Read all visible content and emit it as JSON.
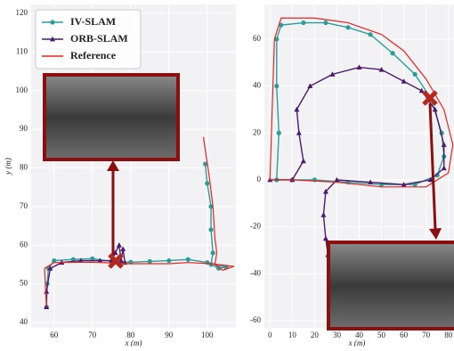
{
  "chart_data": [
    {
      "type": "line",
      "xlabel": "x (m)",
      "ylabel": "y (m)",
      "xlim": [
        54,
        107.5
      ],
      "ylim": [
        38.6,
        122.3
      ],
      "xticks": [
        60,
        70,
        80,
        90,
        100
      ],
      "yticks": [
        40,
        50,
        60,
        70,
        80,
        90,
        100,
        110,
        120
      ],
      "grid": true,
      "legend": "upper left",
      "series": [
        {
          "name": "IV-SLAM",
          "color": "#2a9d9a",
          "marker": "circle",
          "x": [
            99.5,
            100,
            101,
            101,
            101.5,
            101,
            103,
            105,
            100,
            95,
            90,
            85,
            80,
            75,
            70,
            65,
            60,
            58.5,
            58.2,
            58
          ],
          "values": [
            81,
            76,
            70,
            64,
            58,
            55,
            54,
            54.3,
            55.5,
            56.3,
            56,
            55.8,
            55.6,
            55.8,
            56.5,
            56.3,
            56,
            54,
            50,
            44
          ]
        },
        {
          "name": "ORB-SLAM",
          "color": "#4b1a6e",
          "marker": "triangle",
          "x": [
            58,
            58,
            59,
            62,
            67,
            72,
            75,
            76,
            77,
            77.5,
            78,
            78.5
          ],
          "values": [
            44,
            48,
            54,
            55.5,
            56,
            56,
            56,
            58,
            60,
            56,
            59,
            55.5
          ]
        },
        {
          "name": "Reference",
          "color": "#e8231f",
          "marker": "none",
          "x": [
            99,
            100.5,
            101.5,
            102,
            102.5,
            102,
            104,
            107,
            101,
            95,
            90,
            80,
            70,
            60,
            57.5,
            57.8,
            58
          ],
          "values": [
            88,
            78,
            70,
            62,
            58,
            55,
            53.5,
            54.5,
            55.2,
            55.5,
            55.2,
            55.2,
            55.6,
            55.5,
            54,
            48,
            44
          ]
        }
      ]
    },
    {
      "type": "line",
      "xlabel": "x (m)",
      "xlim": [
        -2.5,
        82.5
      ],
      "ylim": [
        -63.1,
        74.8
      ],
      "xticks": [
        0,
        10,
        20,
        30,
        40,
        50,
        60,
        70,
        80
      ],
      "yticks": [
        -60,
        -40,
        -20,
        0,
        20,
        40,
        60
      ],
      "grid": true,
      "legend": "none",
      "series": [
        {
          "color": "#2a9d9a",
          "marker": "circle",
          "x": [
            3,
            4,
            3,
            3,
            5,
            15,
            25,
            35,
            45,
            55,
            65,
            72,
            77,
            78,
            75,
            65,
            50,
            35,
            20,
            10,
            3
          ],
          "values": [
            0,
            20,
            40,
            60,
            66,
            67,
            67,
            65,
            62,
            54,
            45,
            35,
            20,
            10,
            2,
            -2,
            -2,
            -1,
            0,
            0,
            0
          ]
        },
        {
          "color": "#4b1a6e",
          "marker": "triangle",
          "x": [
            0,
            10,
            15,
            13,
            12,
            18,
            28,
            40,
            50,
            60,
            68,
            74,
            78,
            78,
            72,
            60,
            45,
            30,
            25,
            24,
            25,
            26
          ],
          "values": [
            0,
            0,
            8,
            20,
            30,
            40,
            45,
            48,
            47,
            42,
            38,
            30,
            15,
            5,
            0,
            -2,
            -1,
            0,
            -5,
            -15,
            -25,
            -32
          ]
        },
        {
          "color": "#e8231f",
          "marker": "none",
          "x": [
            0,
            1,
            2,
            5,
            20,
            35,
            50,
            60,
            70,
            78,
            82,
            80,
            70,
            50,
            30,
            10,
            0
          ],
          "values": [
            0,
            30,
            60,
            69,
            69,
            67,
            62,
            55,
            43,
            30,
            15,
            3,
            -3,
            -3,
            -1,
            0,
            0
          ]
        }
      ]
    }
  ]
}
